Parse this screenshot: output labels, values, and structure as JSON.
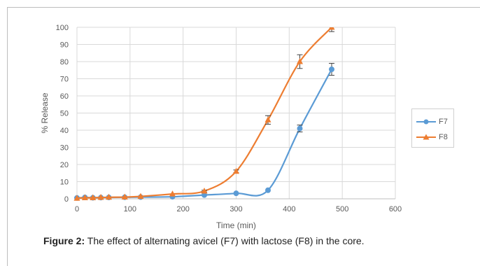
{
  "chart_data": {
    "type": "line",
    "xlabel": "Time (min)",
    "ylabel": "% Release",
    "xlim": [
      0,
      600
    ],
    "ylim": [
      0,
      100
    ],
    "xticks": [
      0,
      100,
      200,
      300,
      400,
      500,
      600
    ],
    "yticks": [
      0,
      10,
      20,
      30,
      40,
      50,
      60,
      70,
      80,
      90,
      100
    ],
    "grid": true,
    "legend_position": "right",
    "series": [
      {
        "name": "F7",
        "color": "#5B9BD5",
        "marker": "circle",
        "x": [
          0,
          15,
          30,
          45,
          60,
          90,
          120,
          180,
          240,
          300,
          360,
          420,
          480
        ],
        "y": [
          0.5,
          0.8,
          0.6,
          0.7,
          0.8,
          0.9,
          1.0,
          1.2,
          2.2,
          3.2,
          5.0,
          41.0,
          75.5
        ],
        "error": [
          0,
          0,
          0,
          0,
          0,
          0,
          0,
          0,
          0,
          0,
          0,
          2.0,
          3.5
        ]
      },
      {
        "name": "F8",
        "color": "#ED7D31",
        "marker": "triangle",
        "x": [
          0,
          15,
          30,
          45,
          60,
          90,
          120,
          180,
          240,
          300,
          360,
          420,
          480
        ],
        "y": [
          0.3,
          0.6,
          0.6,
          0.8,
          0.9,
          1.0,
          1.4,
          2.8,
          4.5,
          16.0,
          46.0,
          80.0,
          100.0
        ],
        "error": [
          0,
          0,
          0,
          0,
          0,
          0,
          0,
          0,
          0.5,
          0.8,
          2.5,
          4.0,
          2.5
        ]
      }
    ]
  },
  "caption": {
    "label": "Figure 2:",
    "text": " The effect of alternating avicel (F7) with lactose (F8) in the core."
  }
}
